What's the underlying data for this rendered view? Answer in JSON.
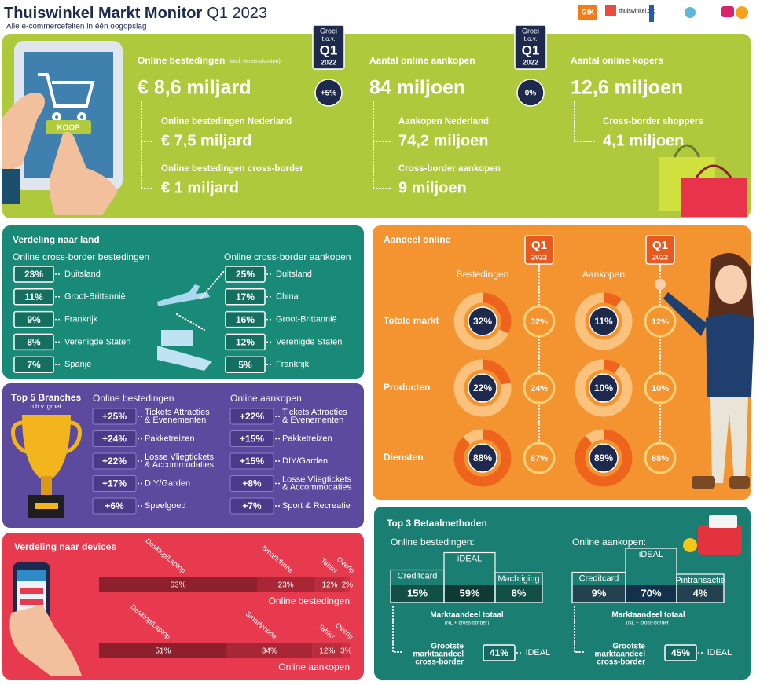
{
  "header": {
    "title": "Thuiswinkel Markt Monitor",
    "period": "Q1 2023",
    "subtitle": "Alle e-commercefeiten in één oogopslag",
    "logos": [
      "GfK",
      "thuiswinkel.org"
    ]
  },
  "growth_tag": [
    "Groei",
    "t.o.v.",
    "Q1",
    "2022"
  ],
  "overview": {
    "button": "KOOP",
    "columns": [
      {
        "label": "Online bestedingen",
        "note": "(excl. verzendkosten)",
        "value": "€ 8,6 miljard",
        "growth": "+5%",
        "details": [
          {
            "label": "Online bestedingen Nederland",
            "value": "€ 7,5 miljard"
          },
          {
            "label": "Online bestedingen cross-border",
            "value": "€ 1 miljard"
          }
        ]
      },
      {
        "label": "Aantal online aankopen",
        "value": "84 miljoen",
        "growth": "0%",
        "details": [
          {
            "label": "Aankopen Nederland",
            "value": "74,2 miljoen"
          },
          {
            "label": "Cross-border aankopen",
            "value": "9 miljoen"
          }
        ]
      },
      {
        "label": "Aantal online kopers",
        "value": "12,6 miljoen",
        "details": [
          {
            "label": "Cross-border shoppers",
            "value": "4,1 miljoen"
          }
        ]
      }
    ]
  },
  "countries": {
    "title": "Verdeling naar land",
    "groups": [
      {
        "title": "Online cross-border bestedingen",
        "items": [
          {
            "share": "23%",
            "country": "Duitsland"
          },
          {
            "share": "11%",
            "country": "Groot-Brittannië"
          },
          {
            "share": "9%",
            "country": "Frankrijk"
          },
          {
            "share": "8%",
            "country": "Verenigde Staten"
          },
          {
            "share": "7%",
            "country": "Spanje"
          }
        ]
      },
      {
        "title": "Online cross-border aankopen",
        "items": [
          {
            "share": "25%",
            "country": "Duitsland"
          },
          {
            "share": "17%",
            "country": "China"
          },
          {
            "share": "16%",
            "country": "Groot-Brittannië"
          },
          {
            "share": "12%",
            "country": "Verenigde Staten"
          },
          {
            "share": "5%",
            "country": "Frankrijk"
          }
        ]
      }
    ]
  },
  "branches": {
    "title": "Top 5 Branches",
    "subtitle": "o.b.v. groei",
    "groups": [
      {
        "title": "Online bestedingen",
        "items": [
          {
            "growth": "+25%",
            "branch": [
              "Tickets Attracties",
              "& Evenementen"
            ]
          },
          {
            "growth": "+24%",
            "branch": [
              "Pakketreizen"
            ]
          },
          {
            "growth": "+22%",
            "branch": [
              "Losse Vliegtickets",
              "& Accommodaties"
            ]
          },
          {
            "growth": "+17%",
            "branch": [
              "DIY/Garden"
            ]
          },
          {
            "growth": "+6%",
            "branch": [
              "Speelgoed"
            ]
          }
        ]
      },
      {
        "title": "Online aankopen",
        "items": [
          {
            "growth": "+22%",
            "branch": [
              "Tickets Attracties",
              "& Evenementen"
            ]
          },
          {
            "growth": "+15%",
            "branch": [
              "Pakketreizen"
            ]
          },
          {
            "growth": "+15%",
            "branch": [
              "DIY/Garden"
            ]
          },
          {
            "growth": "+8%",
            "branch": [
              "Losse Vliegtickets",
              "& Accommodaties"
            ]
          },
          {
            "growth": "+7%",
            "branch": [
              "Sport & Recreatie"
            ]
          }
        ]
      }
    ]
  },
  "devices": {
    "title": "Verdeling naar devices",
    "categories": [
      "Desktop/Laptop",
      "Smartphone",
      "Tablet",
      "Overig"
    ],
    "bars": [
      {
        "label": "Online bestedingen",
        "values": [
          63,
          23,
          12,
          2
        ],
        "value_labels": [
          "63%",
          "23%",
          "12%",
          "2%"
        ]
      },
      {
        "label": "Online aankopen",
        "values": [
          51,
          34,
          12,
          3
        ],
        "value_labels": [
          "51%",
          "34%",
          "12%",
          "3%"
        ]
      }
    ]
  },
  "online_share": {
    "title": "Aandeel online",
    "tag": [
      "Q1",
      "2022"
    ],
    "columns": [
      "Bestedingen",
      "Aankopen"
    ],
    "rows": [
      {
        "label": "Totale markt",
        "cells": [
          {
            "value": 32,
            "label": "32%",
            "previous": "32%"
          },
          {
            "value": 11,
            "label": "11%",
            "previous": "12%"
          }
        ]
      },
      {
        "label": "Producten",
        "cells": [
          {
            "value": 22,
            "label": "22%",
            "previous": "24%"
          },
          {
            "value": 10,
            "label": "10%",
            "previous": "10%"
          }
        ]
      },
      {
        "label": "Diensten",
        "cells": [
          {
            "value": 88,
            "label": "88%",
            "previous": "87%"
          },
          {
            "value": 89,
            "label": "89%",
            "previous": "88%"
          }
        ]
      }
    ]
  },
  "payments": {
    "title": "Top 3 Betaalmethoden",
    "total_label": "Marktaandeel totaal",
    "total_note": "(NL + cross-border)",
    "cross_label": [
      "Grootste",
      "marktaandeel",
      "cross-border"
    ],
    "groups": [
      {
        "title": "Online bestedingen:",
        "methods": [
          {
            "name": "Creditcard",
            "value": 15,
            "label": "15%"
          },
          {
            "name": "iDEAL",
            "value": 59,
            "label": "59%"
          },
          {
            "name": "Machtiging",
            "value": 8,
            "label": "8%"
          }
        ],
        "cross_border": {
          "label": "41%",
          "method": "iDEAL"
        }
      },
      {
        "title": "Online aankopen:",
        "methods": [
          {
            "name": "Creditcard",
            "value": 9,
            "label": "9%"
          },
          {
            "name": "iDEAL",
            "value": 70,
            "label": "70%"
          },
          {
            "name": "Pintransactie",
            "value": 4,
            "label": "4%"
          }
        ],
        "cross_border": {
          "label": "45%",
          "method": "iDEAL"
        }
      }
    ]
  }
}
